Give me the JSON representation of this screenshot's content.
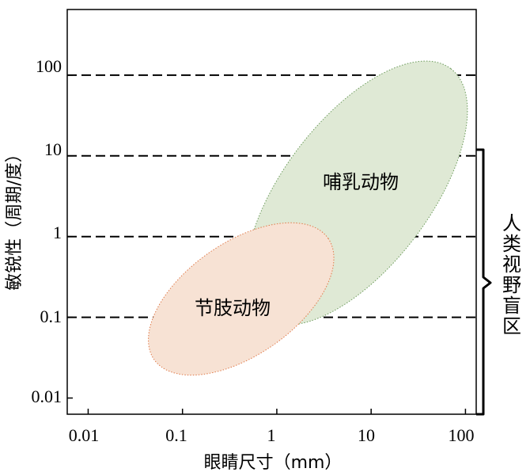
{
  "chart_data": {
    "type": "scatter",
    "title": "",
    "xlabel": "眼睛尺寸（mm）",
    "ylabel": "敏锐性（周期/度）",
    "x_scale": "log",
    "y_scale": "log",
    "xlim": [
      0.006,
      130
    ],
    "ylim": [
      0.0063,
      650
    ],
    "x_ticks": [
      "0.01",
      "0.1",
      "1",
      "10",
      "100"
    ],
    "y_ticks": [
      "0.01",
      "0.1",
      "1",
      "10",
      "100"
    ],
    "gridlines_y": [
      0.1,
      1,
      10,
      100
    ],
    "regions": [
      {
        "label": "哺乳动物",
        "color": "#dfe9d5",
        "x_range": [
          0.7,
          70
        ],
        "y_range": [
          0.1,
          120
        ]
      },
      {
        "label": "节肢动物",
        "color": "#f7e2d4",
        "x_range": [
          0.05,
          3.5
        ],
        "y_range": [
          0.03,
          0.95
        ]
      }
    ],
    "bracket": {
      "label": "人类视野盲区",
      "y_range": [
        0.01,
        10
      ]
    }
  }
}
